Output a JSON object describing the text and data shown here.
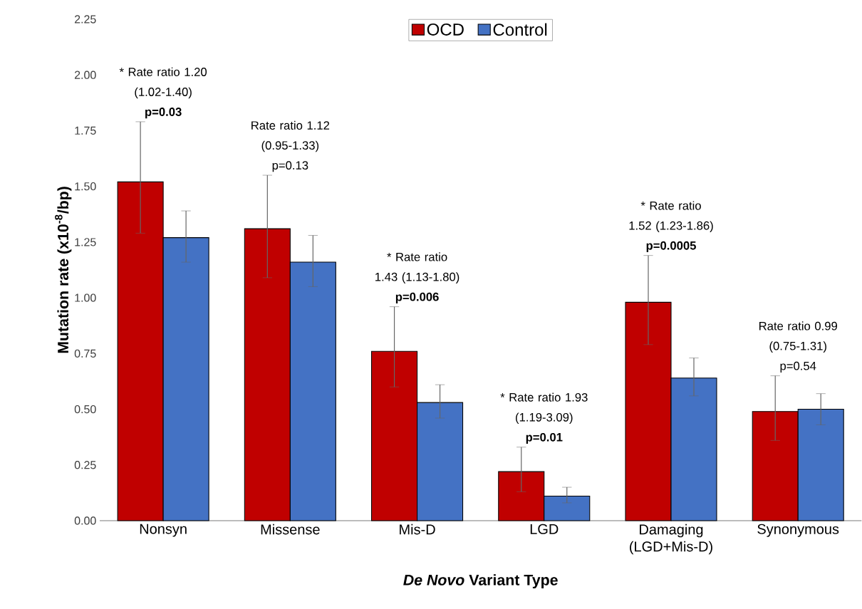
{
  "chart_data": {
    "type": "bar",
    "xlabel": "*De Novo* Variant Type",
    "ylabel": "Mutation rate (x10$^{-8}$/bp)",
    "categories": [
      "Nonsyn",
      "Missense",
      "Mis-D",
      "LGD",
      "Damaging (LGD+Mis-D)",
      "Synonymous"
    ],
    "series": [
      {
        "name": "OCD",
        "color": "#c00000",
        "values": [
          1.52,
          1.31,
          0.76,
          0.22,
          0.98,
          0.49
        ],
        "errors": [
          [
            1.29,
            1.79
          ],
          [
            1.09,
            1.55
          ],
          [
            0.6,
            0.96
          ],
          [
            0.13,
            0.33
          ],
          [
            0.79,
            1.19
          ],
          [
            0.36,
            0.65
          ]
        ]
      },
      {
        "name": "Control",
        "color": "#4472c4",
        "values": [
          1.27,
          1.16,
          0.53,
          0.11,
          0.64,
          0.5
        ],
        "errors": [
          [
            1.16,
            1.39
          ],
          [
            1.05,
            1.28
          ],
          [
            0.46,
            0.61
          ],
          [
            0.08,
            0.15
          ],
          [
            0.56,
            0.73
          ],
          [
            0.43,
            0.57
          ]
        ]
      }
    ],
    "ylim": [
      0,
      2.25
    ],
    "yticks": [
      {
        "value": 0,
        "label": "0.00"
      },
      {
        "value": 0.25,
        "label": "0.25"
      },
      {
        "value": 0.5,
        "label": "0.50"
      },
      {
        "value": 0.75,
        "label": "0.75"
      },
      {
        "value": 1,
        "label": "1.00"
      },
      {
        "value": 1.25,
        "label": "1.25"
      },
      {
        "value": 1.5,
        "label": "1.50"
      },
      {
        "value": 1.75,
        "label": "1.75"
      },
      {
        "value": 2,
        "label": "2.00"
      },
      {
        "value": 2.25,
        "label": "2.25"
      }
    ],
    "legend": "top",
    "grid": false,
    "annotations": [
      "* Rate ratio 1.20 (1.02-1.40) **p=0.03**",
      "Rate ratio 1.12 (0.95-1.33) p=0.13",
      "* Rate ratio 1.43 (1.13-1.80) **p=0.006**",
      "* Rate ratio 1.93 (1.19-3.09) **p=0.01**",
      "* Rate ratio 1.52 (1.23-1.86) **p=0.0005**",
      "Rate ratio 0.99 (0.75-1.31) p=0.54"
    ]
  }
}
